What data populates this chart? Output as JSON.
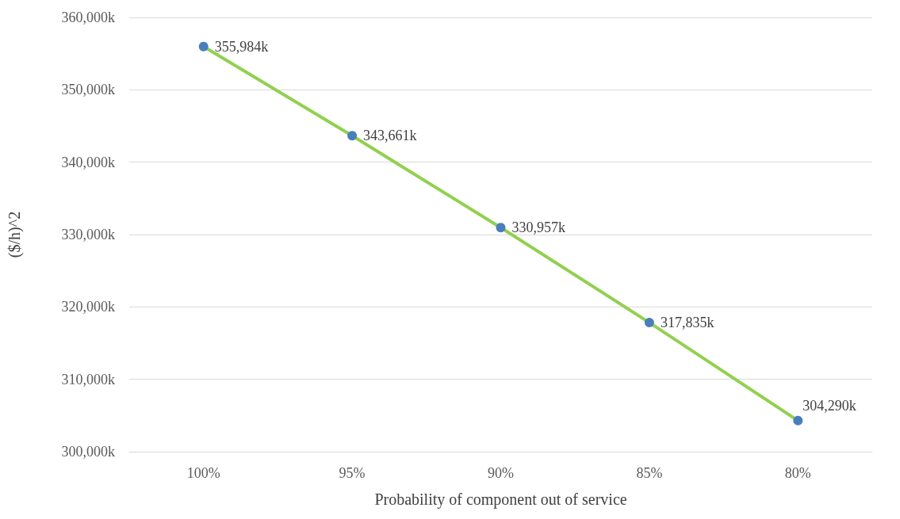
{
  "chart_data": {
    "type": "line",
    "xlabel": "Probability of component out of service",
    "ylabel": "($/h)^2",
    "categories": [
      "100%",
      "95%",
      "90%",
      "85%",
      "80%"
    ],
    "series": [
      {
        "color": "#92d050",
        "colors": [
          "#4a7ebb",
          "#4a7ebb",
          "#4a7ebb",
          "#4a7ebb",
          "#4a7ebb"
        ],
        "values": [
          355984,
          343661,
          330957,
          317835,
          304290
        ],
        "value_labels": [
          "355,984k",
          "343,661k",
          "330,957k",
          "317,835k",
          "304,290k"
        ]
      }
    ],
    "ylim": [
      300000,
      360000
    ],
    "yticks": [
      {
        "value": 300000,
        "label": "300,000k"
      },
      {
        "value": 310000,
        "label": "310,000k"
      },
      {
        "value": 320000,
        "label": "320,000k"
      },
      {
        "value": 330000,
        "label": "330,000k"
      },
      {
        "value": 340000,
        "label": "340,000k"
      },
      {
        "value": 350000,
        "label": "350,000k"
      },
      {
        "value": 360000,
        "label": "360,000k"
      }
    ],
    "grid": "y",
    "marker": "circle",
    "line_style": "solid"
  }
}
